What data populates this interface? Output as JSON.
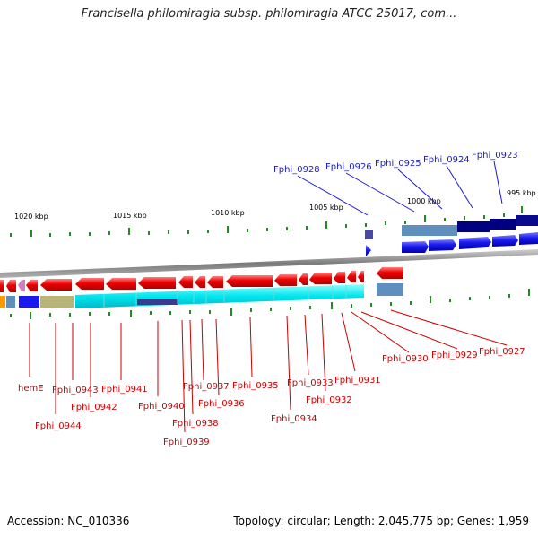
{
  "title": "Francisella philomiragia subsp. philomiragia ATCC 25017, com...",
  "footer": {
    "accession": "Accession: NC_010336",
    "topology": "Topology: circular; Length: 2,045,775 bp; Genes: 1,959"
  },
  "scale_labels": [
    "1020 kbp",
    "1015 kbp",
    "1010 kbp",
    "1005 kbp",
    "1000 kbp",
    "995 kbp"
  ],
  "blue_gene_labels": [
    "Fphi_0928",
    "Fphi_0926",
    "Fphi_0925",
    "Fphi_0924",
    "Fphi_0923"
  ],
  "red_gene_labels": [
    "hemE",
    "Fphi_0944",
    "Fphi_0943",
    "Fphi_0942",
    "Fphi_0941",
    "Fphi_0940",
    "Fphi_0939",
    "Fphi_0938",
    "Fphi_0937",
    "Fphi_0936",
    "Fphi_0935",
    "Fphi_0934",
    "Fphi_0933",
    "Fphi_0932",
    "Fphi_0931",
    "Fphi_0930",
    "Fphi_0929",
    "Fphi_0927"
  ],
  "colors": {
    "reverse_strand": "#ee0000",
    "forward_strand": "#1a1aee",
    "backbone": "#888888",
    "tick": "#228b22",
    "cds_cyan": "#00e5ee",
    "cds_navy": "#000080",
    "cds_steel": "#5f8fbf",
    "cds_khaki": "#b8b477",
    "label_blue": "#1a1acc",
    "label_red": "#cc0000"
  }
}
